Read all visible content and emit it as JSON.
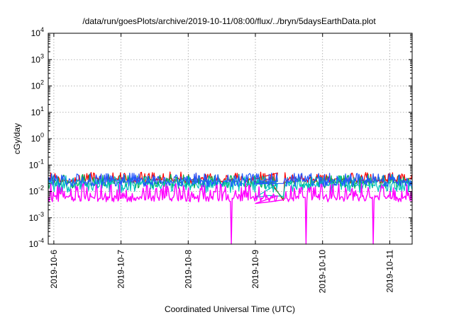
{
  "chart_data": {
    "type": "line",
    "title": "/data/run/goesPlots/archive/2019-10-11/08:00/flux/../bryn/5daysEarthData.plot",
    "xlabel": "Coordinated Universal Time (UTC)",
    "ylabel": "cGy/day",
    "yscale": "log",
    "ylim": [
      0.0001,
      10000
    ],
    "xlim": [
      "2019-10-05T22:00",
      "2019-10-11T08:00"
    ],
    "x_tick_labels": [
      "2019-10-6",
      "2019-10-7",
      "2019-10-8",
      "2019-10-9",
      "2019-10-10",
      "2019-10-11"
    ],
    "y_ticks": [
      {
        "base": "10",
        "exp": "-4"
      },
      {
        "base": "10",
        "exp": "-3"
      },
      {
        "base": "10",
        "exp": "-2"
      },
      {
        "base": "10",
        "exp": "-1"
      },
      {
        "base": "10",
        "exp": "0"
      },
      {
        "base": "10",
        "exp": "1"
      },
      {
        "base": "10",
        "exp": "2"
      },
      {
        "base": "10",
        "exp": "3"
      },
      {
        "base": "10",
        "exp": "4"
      }
    ],
    "grid": true,
    "legend": "none",
    "data_gap": [
      "2019-10-09T08:00",
      "2019-10-09T10:30"
    ],
    "series": [
      {
        "color": "#ff0000",
        "typical": 0.028,
        "low": 0.02,
        "high": 0.055,
        "gap_points": [
          [
            "2019-10-09T00:00",
            0.03
          ],
          [
            "2019-10-09T05:00",
            0.029
          ],
          [
            "2019-10-09T10:00",
            0.0045
          ]
        ]
      },
      {
        "color": "#00b050",
        "typical": 0.022,
        "low": 0.013,
        "high": 0.045,
        "gap_points": [
          [
            "2019-10-09T00:00",
            0.022
          ],
          [
            "2019-10-09T05:00",
            0.022
          ],
          [
            "2019-10-09T10:00",
            0.0052
          ]
        ]
      },
      {
        "color": "#00c0c0",
        "typical": 0.018,
        "low": 0.009,
        "high": 0.04,
        "gap_points": [
          [
            "2019-10-09T00:00",
            0.006
          ],
          [
            "2019-10-09T05:00",
            0.007
          ],
          [
            "2019-10-09T10:00",
            0.0065
          ]
        ]
      },
      {
        "color": "#2255ff",
        "typical": 0.025,
        "low": 0.015,
        "high": 0.05,
        "gap_points": [
          [
            "2019-10-09T00:00",
            0.019
          ],
          [
            "2019-10-09T05:00",
            0.02
          ],
          [
            "2019-10-09T10:00",
            0.02
          ]
        ]
      },
      {
        "color": "#ff00ff",
        "typical": 0.006,
        "low": 0.004,
        "high": 0.02,
        "gap_points": [
          [
            "2019-10-09T00:00",
            0.0035
          ],
          [
            "2019-10-09T05:00",
            0.004
          ],
          [
            "2019-10-09T10:00",
            0.0048
          ]
        ],
        "dropouts": [
          "2019-10-08T15:30",
          "2019-10-09T18:00",
          "2019-10-10T18:00"
        ]
      }
    ]
  }
}
